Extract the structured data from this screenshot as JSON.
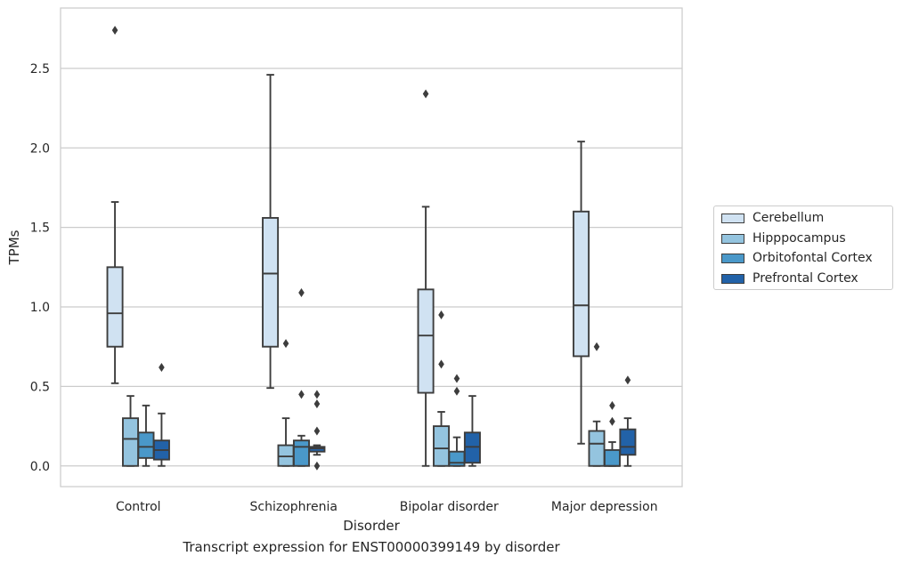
{
  "caption": "Transcript expression for ENST00000399149 by disorder",
  "chart_data": {
    "type": "box",
    "title": "",
    "xlabel": "Disorder",
    "ylabel": "TPMs",
    "ylim": [
      -0.13,
      2.88
    ],
    "yticks": [
      "0.0",
      "0.5",
      "1.0",
      "1.5",
      "2.0",
      "2.5"
    ],
    "grid": "horizontal",
    "legend_position": "right",
    "categories": [
      "Control",
      "Schizophrenia",
      "Bipolar disorder",
      "Major depression"
    ],
    "series": [
      {
        "name": "Cerebellum",
        "color": "#d0e2f2",
        "boxes": [
          {
            "whislo": 0.52,
            "q1": 0.75,
            "med": 0.96,
            "q3": 1.25,
            "whishi": 1.66,
            "fliers": [
              2.74
            ]
          },
          {
            "whislo": 0.49,
            "q1": 0.75,
            "med": 1.21,
            "q3": 1.56,
            "whishi": 2.46,
            "fliers": []
          },
          {
            "whislo": 0.0,
            "q1": 0.46,
            "med": 0.82,
            "q3": 1.11,
            "whishi": 1.63,
            "fliers": [
              2.34
            ]
          },
          {
            "whislo": 0.14,
            "q1": 0.69,
            "med": 1.01,
            "q3": 1.6,
            "whishi": 2.04,
            "fliers": []
          }
        ]
      },
      {
        "name": "Hipppocampus",
        "color": "#94c4df",
        "boxes": [
          {
            "whislo": 0.0,
            "q1": 0.0,
            "med": 0.17,
            "q3": 0.3,
            "whishi": 0.44,
            "fliers": []
          },
          {
            "whislo": 0.0,
            "q1": 0.0,
            "med": 0.06,
            "q3": 0.13,
            "whishi": 0.3,
            "fliers": [
              0.77
            ]
          },
          {
            "whislo": 0.0,
            "q1": 0.0,
            "med": 0.11,
            "q3": 0.25,
            "whishi": 0.34,
            "fliers": [
              0.95,
              0.64
            ]
          },
          {
            "whislo": 0.0,
            "q1": 0.0,
            "med": 0.14,
            "q3": 0.22,
            "whishi": 0.28,
            "fliers": [
              0.75
            ]
          }
        ]
      },
      {
        "name": "Orbitofontal Cortex",
        "color": "#4a98c9",
        "boxes": [
          {
            "whislo": 0.0,
            "q1": 0.05,
            "med": 0.12,
            "q3": 0.21,
            "whishi": 0.38,
            "fliers": []
          },
          {
            "whislo": 0.0,
            "q1": 0.0,
            "med": 0.12,
            "q3": 0.16,
            "whishi": 0.19,
            "fliers": [
              1.09,
              0.45
            ]
          },
          {
            "whislo": 0.0,
            "q1": 0.0,
            "med": 0.02,
            "q3": 0.09,
            "whishi": 0.18,
            "fliers": [
              0.55,
              0.47
            ]
          },
          {
            "whislo": 0.0,
            "q1": 0.0,
            "med": 0.0,
            "q3": 0.1,
            "whishi": 0.15,
            "fliers": [
              0.38,
              0.28
            ]
          }
        ]
      },
      {
        "name": "Prefrontal Cortex",
        "color": "#2262a8",
        "boxes": [
          {
            "whislo": 0.0,
            "q1": 0.04,
            "med": 0.1,
            "q3": 0.16,
            "whishi": 0.33,
            "fliers": [
              0.62
            ]
          },
          {
            "whislo": 0.07,
            "q1": 0.09,
            "med": 0.11,
            "q3": 0.12,
            "whishi": 0.13,
            "fliers": [
              0.45,
              0.39,
              0.22,
              0.0
            ]
          },
          {
            "whislo": 0.0,
            "q1": 0.02,
            "med": 0.12,
            "q3": 0.21,
            "whishi": 0.44,
            "fliers": []
          },
          {
            "whislo": 0.0,
            "q1": 0.07,
            "med": 0.12,
            "q3": 0.23,
            "whishi": 0.3,
            "fliers": [
              0.54
            ]
          }
        ]
      }
    ]
  }
}
